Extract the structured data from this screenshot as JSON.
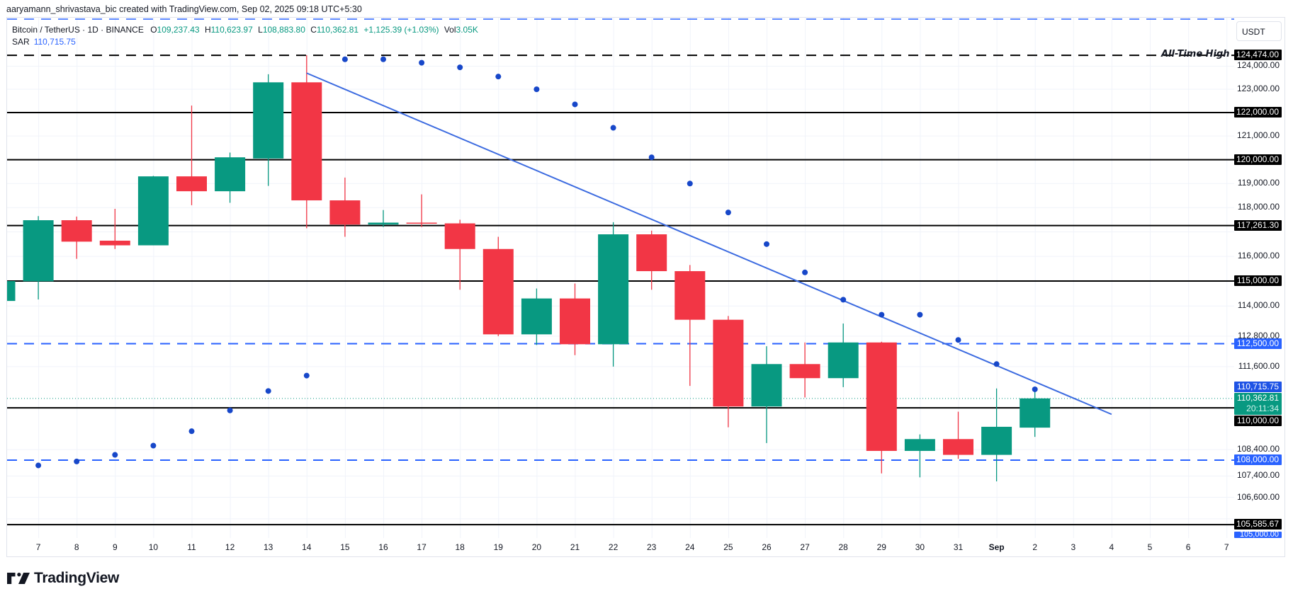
{
  "header": {
    "watermark": "aaryamann_shrivastava_bic created with TradingView.com, Sep 02, 2025 09:18 UTC+5:30",
    "symbol": "Bitcoin / TetherUS · 1D · BINANCE",
    "open_label": "O",
    "open": "109,237.43",
    "high_label": "H",
    "high": "110,623.97",
    "low_label": "L",
    "low": "108,883.80",
    "close_label": "C",
    "close": "110,362.81",
    "change": "+1,125.39 (+1.03%)",
    "vol_label": "Vol",
    "vol": "3.05K",
    "sar_label": "SAR",
    "sar_value": "110,715.75"
  },
  "price_axis": {
    "currency": "USDT",
    "ticks": [
      "124,000.00",
      "123,000.00",
      "121,000.00",
      "119,000.00",
      "118,000.00",
      "116,000.00",
      "114,000.00",
      "112,800.00",
      "111,600.00",
      "108,400.00",
      "107,400.00",
      "106,600.00"
    ],
    "tick_values": [
      124000,
      123000,
      121000,
      119000,
      118000,
      116000,
      114000,
      112800,
      111600,
      108400,
      107400,
      106600
    ]
  },
  "time_axis": {
    "labels": [
      "7",
      "8",
      "9",
      "10",
      "11",
      "12",
      "13",
      "14",
      "15",
      "16",
      "17",
      "18",
      "19",
      "20",
      "21",
      "22",
      "23",
      "24",
      "25",
      "26",
      "27",
      "28",
      "29",
      "30",
      "31",
      "Sep",
      "2",
      "3",
      "4",
      "5",
      "6",
      "7"
    ],
    "bold_index": 25
  },
  "annotations": {
    "ath_text": "All-Time High",
    "levels": [
      {
        "price": 124474.0,
        "label": "124,474.00",
        "style": "dashed",
        "color": "#000000"
      },
      {
        "price": 122000.0,
        "label": "122,000.00",
        "style": "solid",
        "color": "#000000"
      },
      {
        "price": 120000.0,
        "label": "120,000.00",
        "style": "solid",
        "color": "#000000"
      },
      {
        "price": 117261.3,
        "label": "117,261.30",
        "style": "solid",
        "color": "#000000"
      },
      {
        "price": 115000.0,
        "label": "115,000.00",
        "style": "solid",
        "color": "#000000"
      },
      {
        "price": 112500.0,
        "label": "112,500.00",
        "style": "dashed",
        "color": "#2962ff"
      },
      {
        "price": 110000.0,
        "label": "110,000.00",
        "style": "solid",
        "color": "#000000"
      },
      {
        "price": 108000.0,
        "label": "108,000.00",
        "style": "dashed",
        "color": "#2962ff"
      },
      {
        "price": 105585.67,
        "label": "105,585.67",
        "style": "solid",
        "color": "#000000"
      }
    ],
    "tags": {
      "sar": {
        "label": "110,715.75",
        "color": "#1e53e5"
      },
      "last": {
        "label": "110,362.81",
        "countdown": "20:11:34",
        "color": "#089981"
      },
      "bottom_blue": {
        "label": "105,000.00",
        "color": "#2962ff"
      }
    },
    "trendline": {
      "from": {
        "day": "Aug 14",
        "price": 123700
      },
      "to": {
        "day": "Sep 4",
        "price": 109750
      },
      "color": "#3c6be0"
    }
  },
  "colors": {
    "up": "#089981",
    "down": "#f23645",
    "sar": "#1747c9",
    "grid": "#f0f3fa"
  },
  "branding": {
    "logo_text": "TradingView"
  },
  "chart_data": {
    "type": "candlestick",
    "title": "Bitcoin / TetherUS · 1D · BINANCE",
    "xlabel": "",
    "ylabel": "USDT",
    "ylim": [
      105000,
      125000
    ],
    "scale": "log",
    "grid": true,
    "categories": [
      "Aug 6",
      "Aug 7",
      "Aug 8",
      "Aug 9",
      "Aug 10",
      "Aug 11",
      "Aug 12",
      "Aug 13",
      "Aug 14",
      "Aug 15",
      "Aug 16",
      "Aug 17",
      "Aug 18",
      "Aug 19",
      "Aug 20",
      "Aug 21",
      "Aug 22",
      "Aug 23",
      "Aug 24",
      "Aug 25",
      "Aug 26",
      "Aug 27",
      "Aug 28",
      "Aug 29",
      "Aug 30",
      "Aug 31",
      "Sep 1",
      "Sep 2"
    ],
    "ohlc": [
      [
        114200,
        115000,
        113900,
        115000
      ],
      [
        114990,
        117650,
        114260,
        117480
      ],
      [
        117480,
        117630,
        115900,
        116600
      ],
      [
        116640,
        117950,
        116300,
        116450
      ],
      [
        116450,
        119320,
        116450,
        119300
      ],
      [
        119300,
        122300,
        118100,
        118680
      ],
      [
        118680,
        120300,
        118200,
        120100
      ],
      [
        120050,
        123650,
        118900,
        123300
      ],
      [
        123300,
        124474,
        117150,
        118300
      ],
      [
        118300,
        119250,
        116800,
        117300
      ],
      [
        117300,
        117900,
        117200,
        117380
      ],
      [
        117380,
        118550,
        117200,
        117350
      ],
      [
        117350,
        117500,
        114650,
        116300
      ],
      [
        116300,
        116800,
        112800,
        112870
      ],
      [
        112870,
        114700,
        112450,
        114300
      ],
      [
        114300,
        114900,
        112050,
        112480
      ],
      [
        112480,
        117400,
        111600,
        116900
      ],
      [
        116900,
        117050,
        114650,
        115400
      ],
      [
        115400,
        115650,
        110850,
        113450
      ],
      [
        113450,
        113600,
        109250,
        110050
      ],
      [
        110050,
        112400,
        108650,
        111700
      ],
      [
        111700,
        112550,
        110400,
        111150
      ],
      [
        111150,
        113300,
        110800,
        112550
      ],
      [
        112550,
        112580,
        107500,
        108350
      ],
      [
        108350,
        108980,
        107350,
        108800
      ],
      [
        108800,
        109850,
        108050,
        108200
      ],
      [
        108200,
        110750,
        107200,
        109270
      ],
      [
        109237.43,
        110623.97,
        108883.8,
        110362.81
      ]
    ],
    "sar": [
      null,
      107800,
      107950,
      108200,
      108550,
      109100,
      109900,
      110650,
      111250,
      124300,
      124300,
      124150,
      123950,
      123550,
      123000,
      122350,
      121350,
      120100,
      119000,
      117800,
      116500,
      115350,
      114250,
      113650,
      113650,
      112650,
      111700,
      110715.75
    ]
  }
}
